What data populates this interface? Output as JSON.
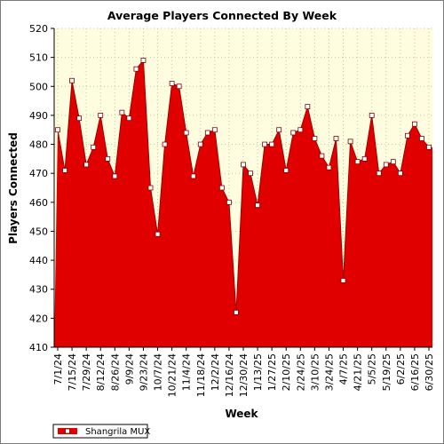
{
  "chart_data": {
    "type": "area",
    "title": "Average Players Connected By Week",
    "xlabel": "Week",
    "ylabel": "Players Connected",
    "ylim": [
      410,
      520
    ],
    "yticks": [
      410,
      420,
      430,
      440,
      450,
      460,
      470,
      480,
      490,
      500,
      510,
      520
    ],
    "xtick_labels": [
      "7/1/24",
      "7/15/24",
      "7/29/24",
      "8/12/24",
      "8/26/24",
      "9/9/24",
      "9/23/24",
      "10/7/24",
      "10/21/24",
      "11/4/24",
      "11/18/24",
      "12/2/24",
      "12/16/24",
      "12/30/24",
      "1/13/25",
      "1/27/25",
      "2/10/25",
      "2/24/25",
      "3/10/25",
      "3/24/25",
      "4/7/25",
      "4/21/25",
      "5/5/25",
      "5/19/25",
      "6/2/25",
      "6/16/25",
      "6/30/25"
    ],
    "grid": true,
    "legend_position": "bottom-left",
    "colors": {
      "fill": "#e00000",
      "plot_bg": "#fffde0",
      "grid": "#c8c8a0",
      "marker": "#ffffff",
      "marker_edge": "#800000"
    },
    "series": [
      {
        "name": "Shangrila MUX",
        "values": [
          485,
          471,
          502,
          489,
          473,
          479,
          490,
          475,
          469,
          491,
          489,
          506,
          509,
          465,
          449,
          480,
          501,
          500,
          484,
          469,
          480,
          484,
          485,
          465,
          460,
          422,
          473,
          470,
          459,
          480,
          480,
          485,
          471,
          484,
          485,
          493,
          482,
          476,
          472,
          482,
          433,
          481,
          474,
          475,
          490,
          470,
          473,
          474,
          470,
          483,
          487,
          482,
          479
        ]
      }
    ]
  }
}
